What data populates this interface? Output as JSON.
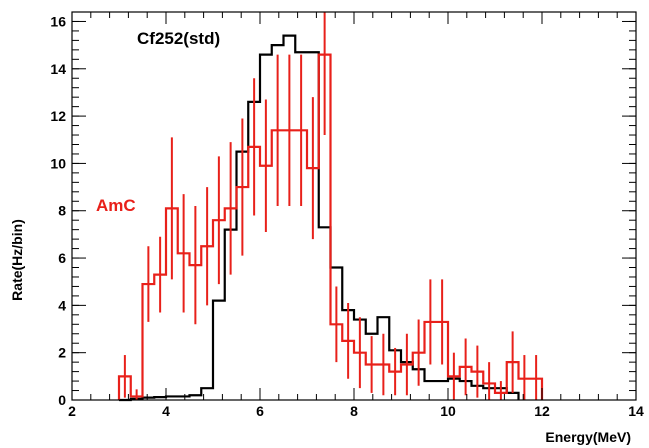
{
  "chart_data": {
    "type": "histogram",
    "xlabel": "Energy(MeV)",
    "ylabel": "Rate(Hz/bin)",
    "xlim": [
      2,
      14
    ],
    "ylim": [
      0,
      16.4
    ],
    "xticks": [
      2,
      4,
      6,
      8,
      10,
      12,
      14
    ],
    "yticks": [
      0,
      2,
      4,
      6,
      8,
      10,
      12,
      14,
      16
    ],
    "x_tick_labels": [
      "2",
      "4",
      "6",
      "8",
      "10",
      "12",
      "14"
    ],
    "y_tick_labels": [
      "0",
      "2",
      "4",
      "6",
      "8",
      "10",
      "12",
      "14",
      "16"
    ],
    "grid": false,
    "bin_width": 0.25,
    "series": [
      {
        "name": "Cf252(std)",
        "color": "#000000",
        "style": "step",
        "bin_edges_start": 3.0,
        "values": [
          0,
          0.05,
          0.1,
          0.12,
          0.15,
          0.15,
          0.2,
          0.5,
          4.2,
          7.2,
          10.5,
          12.6,
          14.6,
          15.0,
          15.4,
          14.7,
          14.7,
          7.3,
          5.6,
          3.8,
          3.4,
          2.8,
          3.5,
          2.1,
          1.6,
          1.3,
          0.8,
          0.8,
          0.9,
          0.8,
          0.6,
          0.5,
          0.5,
          0.3
        ]
      },
      {
        "name": "AmC",
        "color": "#e8201a",
        "style": "step-errorbars",
        "bin_edges_start": 3.0,
        "values": [
          1.0,
          0.15,
          4.9,
          5.3,
          8.1,
          6.2,
          5.7,
          6.5,
          7.6,
          8.1,
          9.0,
          10.7,
          9.9,
          11.4,
          11.4,
          11.4,
          9.8,
          14.6,
          3.2,
          2.5,
          2.0,
          1.5,
          1.5,
          1.2,
          1.5,
          2.0,
          3.3,
          3.3,
          1.0,
          1.4,
          1.2,
          0.7,
          0.3,
          1.6,
          0.9,
          0.9
        ],
        "errors": [
          0.9,
          0.3,
          1.6,
          1.6,
          3.0,
          2.5,
          2.5,
          2.5,
          2.7,
          2.8,
          2.9,
          2.9,
          2.8,
          3.2,
          3.2,
          3.2,
          3.0,
          3.4,
          1.6,
          1.6,
          1.5,
          1.2,
          1.3,
          1.0,
          1.3,
          1.4,
          1.8,
          1.8,
          1.0,
          1.2,
          1.1,
          0.9,
          0.5,
          1.3,
          1.0,
          1.0
        ]
      }
    ],
    "annotations": [
      {
        "text": "Cf252(std)",
        "color": "#000000"
      },
      {
        "text": "AmC",
        "color": "#e8201a"
      }
    ]
  }
}
